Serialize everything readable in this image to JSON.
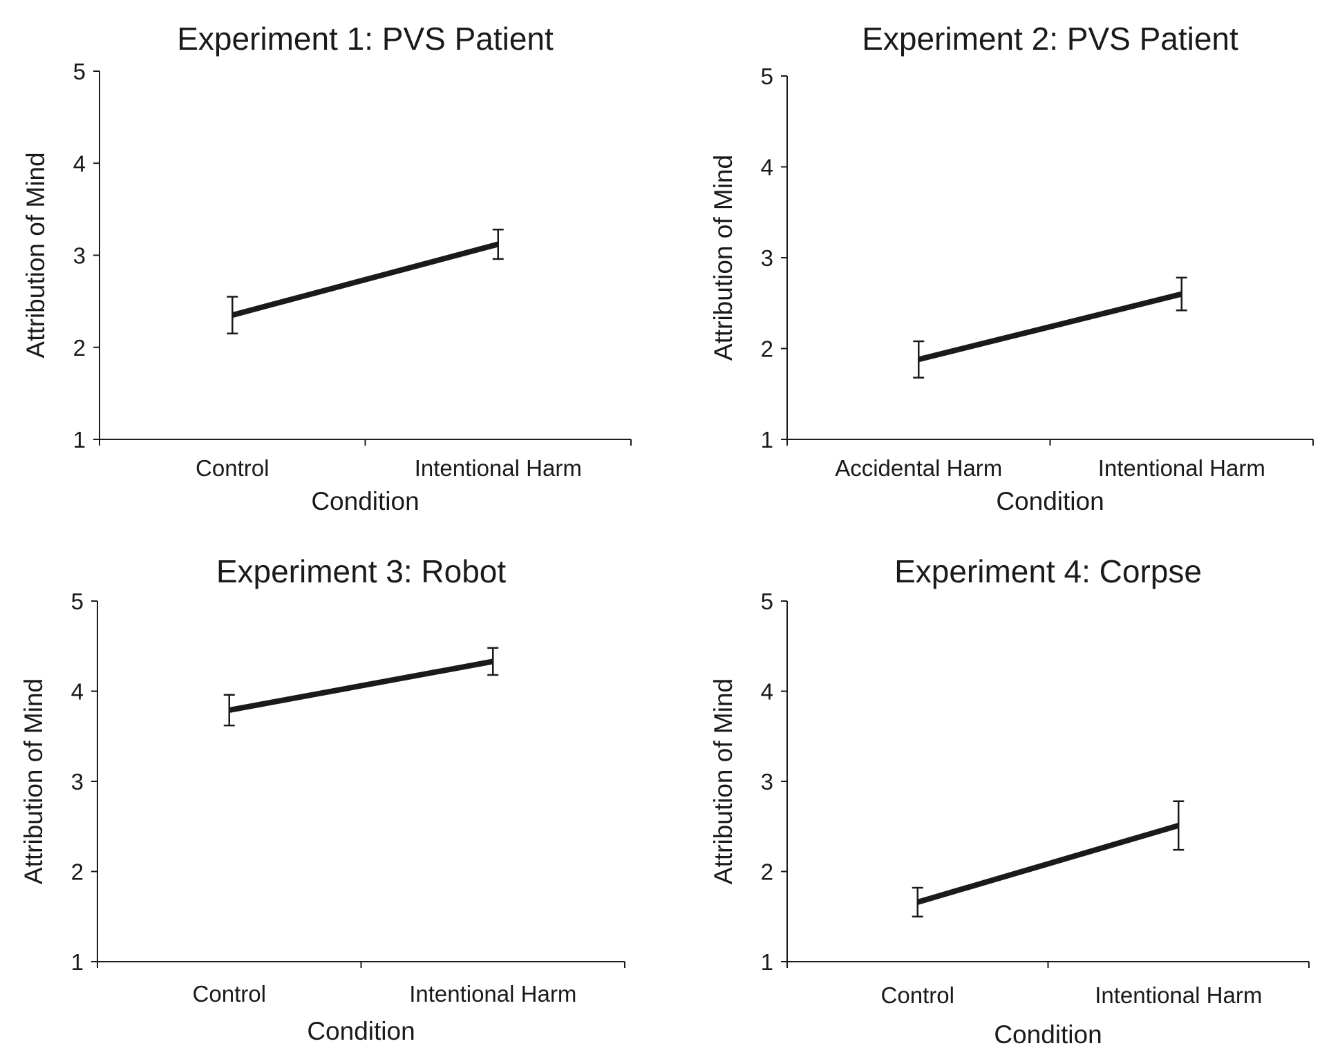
{
  "chart_data": [
    {
      "type": "line",
      "title": "Experiment 1: PVS Patient",
      "xlabel": "Condition",
      "ylabel": "Attribution of Mind",
      "categories": [
        "Control",
        "Intentional Harm"
      ],
      "values": [
        2.35,
        3.12
      ],
      "error": [
        0.2,
        0.16
      ],
      "ylim": [
        1,
        5
      ],
      "yticks": [
        "1",
        "2",
        "3",
        "4",
        "5"
      ],
      "grid": false
    },
    {
      "type": "line",
      "title": "Experiment 2: PVS Patient",
      "xlabel": "Condition",
      "ylabel": "Attribution of Mind",
      "categories": [
        "Accidental Harm",
        "Intentional Harm"
      ],
      "values": [
        1.88,
        2.6
      ],
      "error": [
        0.2,
        0.18
      ],
      "ylim": [
        1,
        5
      ],
      "yticks": [
        "1",
        "2",
        "3",
        "4",
        "5"
      ],
      "grid": false
    },
    {
      "type": "line",
      "title": "Experiment 3: Robot",
      "xlabel": "Condition",
      "ylabel": "Attribution of Mind",
      "categories": [
        "Control",
        "Intentional Harm"
      ],
      "values": [
        3.79,
        4.33
      ],
      "error": [
        0.17,
        0.15
      ],
      "ylim": [
        1,
        5
      ],
      "yticks": [
        "1",
        "2",
        "3",
        "4",
        "5"
      ],
      "grid": false
    },
    {
      "type": "line",
      "title": "Experiment 4: Corpse",
      "xlabel": "Condition",
      "ylabel": "Attribution of Mind",
      "categories": [
        "Control",
        "Intentional Harm"
      ],
      "values": [
        1.66,
        2.51
      ],
      "error": [
        0.16,
        0.27
      ],
      "ylim": [
        1,
        5
      ],
      "yticks": [
        "1",
        "2",
        "3",
        "4",
        "5"
      ],
      "grid": false
    }
  ]
}
